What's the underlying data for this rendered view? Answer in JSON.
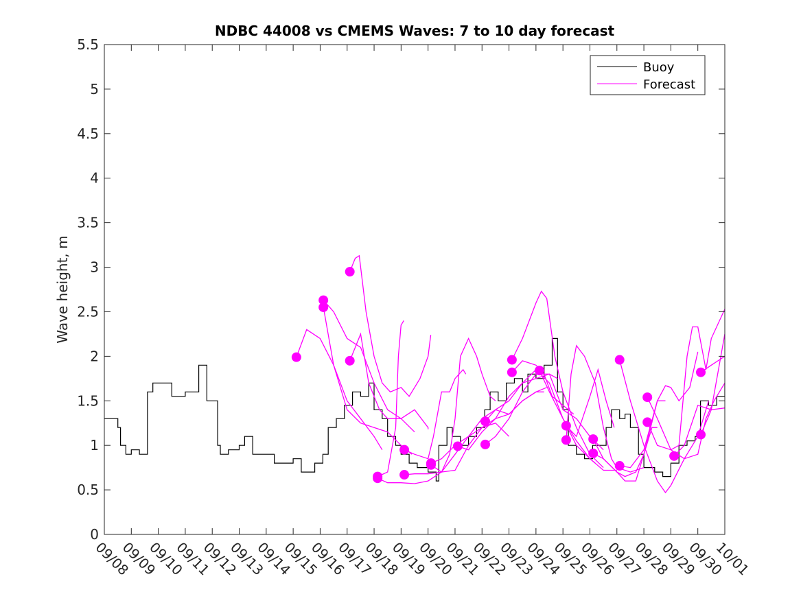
{
  "chart_data": {
    "type": "line",
    "title": "NDBC 44008 vs CMEMS Waves: 7 to 10 day forecast",
    "xlabel": "",
    "ylabel": "Wave height, m",
    "x_unit": "days since 09/08",
    "xlim": [
      0,
      23
    ],
    "ylim": [
      0,
      5.5
    ],
    "grid": false,
    "legend_position": "top-right",
    "x_tick_labels": [
      "09/08",
      "09/09",
      "09/10",
      "09/11",
      "09/12",
      "09/13",
      "09/14",
      "09/15",
      "09/16",
      "09/17",
      "09/18",
      "09/19",
      "09/20",
      "09/21",
      "09/22",
      "09/23",
      "09/24",
      "09/25",
      "09/26",
      "09/27",
      "09/28",
      "09/29",
      "09/30",
      "10/01"
    ],
    "y_ticks": [
      0,
      0.5,
      1,
      1.5,
      2,
      2.5,
      3,
      3.5,
      4,
      4.5,
      5,
      5.5
    ],
    "y_tick_labels": [
      "0",
      "0.5",
      "1",
      "1.5",
      "2",
      "2.5",
      "3",
      "3.5",
      "4",
      "4.5",
      "5",
      "5.5"
    ],
    "colors": {
      "buoy": "#000000",
      "forecast": "#ff00ff"
    },
    "legend": [
      "Buoy",
      "Forecast"
    ],
    "buoy": [
      [
        0,
        1.3
      ],
      [
        0.3,
        1.3
      ],
      [
        0.5,
        1.2
      ],
      [
        0.6,
        1.0
      ],
      [
        0.8,
        0.9
      ],
      [
        1.0,
        0.95
      ],
      [
        1.3,
        0.9
      ],
      [
        1.4,
        0.9
      ],
      [
        1.6,
        1.6
      ],
      [
        1.8,
        1.7
      ],
      [
        2.2,
        1.7
      ],
      [
        2.5,
        1.55
      ],
      [
        3.0,
        1.6
      ],
      [
        3.3,
        1.6
      ],
      [
        3.5,
        1.9
      ],
      [
        3.8,
        1.5
      ],
      [
        4.0,
        1.5
      ],
      [
        4.2,
        1.0
      ],
      [
        4.3,
        0.9
      ],
      [
        4.6,
        0.95
      ],
      [
        5.0,
        1.0
      ],
      [
        5.2,
        1.1
      ],
      [
        5.5,
        0.9
      ],
      [
        6.0,
        0.9
      ],
      [
        6.3,
        0.8
      ],
      [
        7.0,
        0.85
      ],
      [
        7.3,
        0.7
      ],
      [
        7.6,
        0.7
      ],
      [
        7.8,
        0.8
      ],
      [
        8.1,
        0.9
      ],
      [
        8.3,
        1.2
      ],
      [
        8.6,
        1.3
      ],
      [
        8.9,
        1.45
      ],
      [
        9.2,
        1.6
      ],
      [
        9.5,
        1.55
      ],
      [
        9.8,
        1.7
      ],
      [
        10.0,
        1.4
      ],
      [
        10.3,
        1.3
      ],
      [
        10.5,
        1.1
      ],
      [
        10.8,
        1.0
      ],
      [
        11.0,
        0.9
      ],
      [
        11.3,
        0.8
      ],
      [
        11.6,
        0.75
      ],
      [
        12.0,
        0.7
      ],
      [
        12.3,
        0.6
      ],
      [
        12.4,
        1.0
      ],
      [
        12.7,
        1.2
      ],
      [
        12.9,
        1.1
      ],
      [
        13.2,
        1.0
      ],
      [
        13.5,
        1.1
      ],
      [
        13.8,
        1.2
      ],
      [
        14.1,
        1.4
      ],
      [
        14.3,
        1.6
      ],
      [
        14.6,
        1.5
      ],
      [
        14.9,
        1.7
      ],
      [
        15.2,
        1.75
      ],
      [
        15.5,
        1.6
      ],
      [
        15.7,
        1.8
      ],
      [
        16.0,
        1.75
      ],
      [
        16.3,
        1.9
      ],
      [
        16.6,
        2.2
      ],
      [
        16.8,
        1.6
      ],
      [
        17.0,
        1.4
      ],
      [
        17.2,
        1.0
      ],
      [
        17.5,
        0.9
      ],
      [
        17.8,
        0.85
      ],
      [
        18.1,
        1.0
      ],
      [
        18.4,
        1.0
      ],
      [
        18.6,
        1.2
      ],
      [
        18.8,
        1.4
      ],
      [
        19.1,
        1.3
      ],
      [
        19.3,
        1.35
      ],
      [
        19.5,
        1.2
      ],
      [
        19.8,
        0.9
      ],
      [
        20.0,
        0.75
      ],
      [
        20.4,
        0.7
      ],
      [
        20.7,
        0.65
      ],
      [
        21.0,
        0.8
      ],
      [
        21.3,
        1.0
      ],
      [
        21.6,
        1.05
      ],
      [
        21.9,
        1.1
      ],
      [
        22.1,
        1.5
      ],
      [
        22.4,
        1.45
      ],
      [
        22.7,
        1.55
      ],
      [
        23.0,
        1.7
      ]
    ],
    "forecasts": [
      [
        [
          7.12,
          1.99
        ],
        [
          7.5,
          2.3
        ],
        [
          8,
          2.2
        ],
        [
          8.5,
          1.9
        ],
        [
          9,
          1.5
        ],
        [
          9.5,
          1.3
        ],
        [
          10,
          1.1
        ],
        [
          10.3,
          0.95
        ]
      ],
      [
        [
          8.12,
          2.63
        ],
        [
          8.5,
          2.5
        ],
        [
          9,
          2.2
        ],
        [
          9.5,
          2.1
        ],
        [
          10,
          1.7
        ],
        [
          10.5,
          1.4
        ],
        [
          11,
          1.3
        ],
        [
          11.5,
          1.15
        ]
      ],
      [
        [
          8.12,
          2.55
        ],
        [
          8.5,
          1.9
        ],
        [
          9,
          1.4
        ],
        [
          9.5,
          1.25
        ],
        [
          10,
          1.2
        ],
        [
          10.5,
          1.15
        ],
        [
          11,
          1.0
        ],
        [
          11.4,
          0.9
        ]
      ],
      [
        [
          9.1,
          2.95
        ],
        [
          9.3,
          3.1
        ],
        [
          9.45,
          3.13
        ],
        [
          9.7,
          2.5
        ],
        [
          10,
          2.0
        ],
        [
          10.3,
          1.7
        ],
        [
          10.6,
          1.6
        ],
        [
          11,
          1.65
        ],
        [
          11.3,
          1.55
        ],
        [
          11.7,
          1.75
        ],
        [
          12,
          2.0
        ],
        [
          12.1,
          2.24
        ]
      ],
      [
        [
          9.1,
          1.95
        ],
        [
          9.5,
          2.25
        ],
        [
          9.8,
          1.7
        ],
        [
          10.2,
          1.4
        ],
        [
          10.5,
          1.3
        ],
        [
          11,
          1.3
        ],
        [
          11.5,
          1.4
        ],
        [
          12,
          1.2
        ],
        [
          12.0,
          1.18
        ]
      ],
      [
        [
          10.13,
          0.65
        ],
        [
          10.5,
          0.7
        ],
        [
          10.8,
          1.2
        ],
        [
          10.9,
          2.0
        ],
        [
          11.0,
          2.35
        ],
        [
          11.1,
          2.4
        ]
      ],
      [
        [
          10.13,
          0.63
        ],
        [
          10.5,
          0.58
        ],
        [
          11,
          0.58
        ],
        [
          11.5,
          0.57
        ],
        [
          12,
          0.6
        ],
        [
          12.5,
          0.7
        ],
        [
          12.8,
          0.9
        ],
        [
          13,
          1.3
        ],
        [
          13.2,
          2.0
        ],
        [
          13.5,
          2.2
        ],
        [
          13.8,
          2.0
        ],
        [
          14,
          1.8
        ],
        [
          14.3,
          1.55
        ],
        [
          14.5,
          1.5
        ]
      ],
      [
        [
          11.12,
          0.95
        ],
        [
          11.5,
          0.9
        ],
        [
          12,
          0.85
        ],
        [
          12.2,
          1.1
        ],
        [
          12.5,
          1.6
        ],
        [
          12.8,
          1.6
        ],
        [
          13,
          1.75
        ],
        [
          13.3,
          1.85
        ],
        [
          13.4,
          1.8
        ]
      ],
      [
        [
          11.12,
          0.67
        ],
        [
          11.5,
          0.68
        ],
        [
          12,
          0.68
        ],
        [
          12.5,
          0.7
        ],
        [
          13,
          0.9
        ],
        [
          13.5,
          1.1
        ],
        [
          14,
          1.2
        ],
        [
          14.5,
          1.25
        ],
        [
          15,
          1.1
        ]
      ],
      [
        [
          12.11,
          0.8
        ],
        [
          12.5,
          0.85
        ],
        [
          13,
          1.0
        ],
        [
          13.5,
          1.1
        ],
        [
          14,
          1.3
        ],
        [
          14.5,
          1.4
        ],
        [
          15,
          1.35
        ],
        [
          15.5,
          1.5
        ],
        [
          16,
          1.6
        ],
        [
          16.3,
          1.6
        ]
      ],
      [
        [
          12.11,
          0.78
        ],
        [
          12.5,
          0.7
        ],
        [
          13,
          0.72
        ],
        [
          13.5,
          1.0
        ],
        [
          14,
          1.2
        ],
        [
          14.5,
          1.3
        ],
        [
          15,
          1.35
        ],
        [
          15.5,
          1.5
        ],
        [
          16,
          1.6
        ],
        [
          16.4,
          1.65
        ]
      ],
      [
        [
          13.1,
          0.99
        ],
        [
          13.5,
          0.95
        ],
        [
          14,
          1.15
        ],
        [
          14.5,
          1.3
        ],
        [
          15,
          1.55
        ],
        [
          15.5,
          1.7
        ],
        [
          16,
          1.75
        ],
        [
          16.5,
          1.8
        ],
        [
          16.8,
          1.75
        ]
      ],
      [
        [
          14.12,
          1.27
        ],
        [
          14.5,
          1.4
        ],
        [
          15,
          1.5
        ],
        [
          15.5,
          1.7
        ],
        [
          16,
          1.85
        ],
        [
          16.5,
          1.7
        ],
        [
          17,
          1.3
        ],
        [
          17.5,
          1.05
        ],
        [
          18,
          0.85
        ],
        [
          18.2,
          0.8
        ]
      ],
      [
        [
          14.12,
          1.01
        ],
        [
          14.5,
          1.1
        ],
        [
          15,
          1.3
        ],
        [
          15.5,
          1.6
        ],
        [
          16,
          1.8
        ],
        [
          16.5,
          1.8
        ],
        [
          17,
          1.4
        ],
        [
          17.5,
          1.3
        ],
        [
          18,
          1.1
        ],
        [
          18.5,
          0.95
        ]
      ],
      [
        [
          15.11,
          1.96
        ],
        [
          15.5,
          2.2
        ],
        [
          16,
          2.6
        ],
        [
          16.2,
          2.73
        ],
        [
          16.4,
          2.65
        ],
        [
          16.7,
          2.0
        ],
        [
          17,
          1.6
        ],
        [
          17.5,
          1.2
        ],
        [
          18,
          0.9
        ],
        [
          18.5,
          0.75
        ]
      ],
      [
        [
          15.11,
          1.82
        ],
        [
          15.5,
          1.95
        ],
        [
          16,
          1.9
        ],
        [
          16.3,
          1.8
        ],
        [
          16.6,
          1.55
        ],
        [
          17,
          1.45
        ],
        [
          17.4,
          1.35
        ]
      ],
      [
        [
          16.13,
          1.84
        ],
        [
          16.5,
          1.6
        ],
        [
          17,
          1.3
        ],
        [
          17.5,
          1.0
        ],
        [
          18,
          0.85
        ],
        [
          18.5,
          0.72
        ],
        [
          19,
          0.72
        ]
      ],
      [
        [
          17.12,
          1.22
        ],
        [
          17.5,
          1.1
        ],
        [
          18,
          1.55
        ],
        [
          18.3,
          1.85
        ],
        [
          18.6,
          1.5
        ],
        [
          18.9,
          1.2
        ]
      ],
      [
        [
          17.12,
          1.06
        ],
        [
          17.3,
          1.8
        ],
        [
          17.5,
          2.12
        ],
        [
          17.8,
          2.0
        ],
        [
          18.2,
          1.7
        ],
        [
          18.5,
          1.2
        ],
        [
          18.8,
          0.85
        ],
        [
          19,
          0.75
        ],
        [
          19.5,
          0.7
        ],
        [
          20,
          0.75
        ]
      ],
      [
        [
          18.12,
          1.07
        ],
        [
          18.5,
          0.85
        ],
        [
          19,
          0.7
        ],
        [
          19.3,
          0.65
        ],
        [
          19.7,
          0.7
        ],
        [
          20,
          0.9
        ],
        [
          20.3,
          1.2
        ],
        [
          20.5,
          1.2
        ]
      ],
      [
        [
          18.12,
          0.91
        ],
        [
          18.5,
          0.85
        ],
        [
          19,
          0.7
        ],
        [
          19.3,
          0.6
        ],
        [
          19.7,
          0.6
        ],
        [
          20,
          0.9
        ],
        [
          20.5,
          1.5
        ],
        [
          20.8,
          1.5
        ]
      ],
      [
        [
          19.1,
          1.96
        ],
        [
          19.5,
          1.5
        ],
        [
          20,
          1.0
        ],
        [
          20.5,
          0.6
        ],
        [
          20.8,
          0.47
        ],
        [
          21,
          0.55
        ],
        [
          21.5,
          0.85
        ],
        [
          22,
          1.1
        ],
        [
          22.4,
          1.5
        ]
      ],
      [
        [
          19.1,
          0.77
        ],
        [
          19.5,
          0.75
        ],
        [
          20,
          0.95
        ],
        [
          20.5,
          1.5
        ],
        [
          20.8,
          1.67
        ],
        [
          21,
          1.65
        ],
        [
          21.3,
          1.5
        ],
        [
          21.7,
          1.65
        ],
        [
          22,
          2.05
        ]
      ],
      [
        [
          20.13,
          1.54
        ],
        [
          20.5,
          1.3
        ],
        [
          21,
          0.95
        ],
        [
          21.5,
          0.85
        ],
        [
          22,
          0.9
        ],
        [
          22.3,
          1.3
        ],
        [
          22.6,
          1.5
        ],
        [
          23,
          1.7
        ]
      ],
      [
        [
          20.13,
          1.26
        ],
        [
          20.5,
          1.0
        ],
        [
          21,
          0.95
        ],
        [
          21.3,
          1.0
        ],
        [
          21.6,
          2.0
        ],
        [
          21.8,
          2.33
        ],
        [
          22,
          2.33
        ],
        [
          22.3,
          1.85
        ],
        [
          22.5,
          2.2
        ],
        [
          23,
          2.53
        ]
      ],
      [
        [
          21.12,
          0.88
        ],
        [
          21.5,
          1.0
        ],
        [
          22,
          1.45
        ],
        [
          22.5,
          1.4
        ],
        [
          23,
          1.42
        ]
      ],
      [
        [
          22.11,
          1.12
        ],
        [
          22.5,
          1.4
        ],
        [
          23,
          2.25
        ]
      ],
      [
        [
          22.11,
          1.82
        ],
        [
          22.5,
          1.9
        ],
        [
          23,
          2.0
        ]
      ]
    ]
  }
}
